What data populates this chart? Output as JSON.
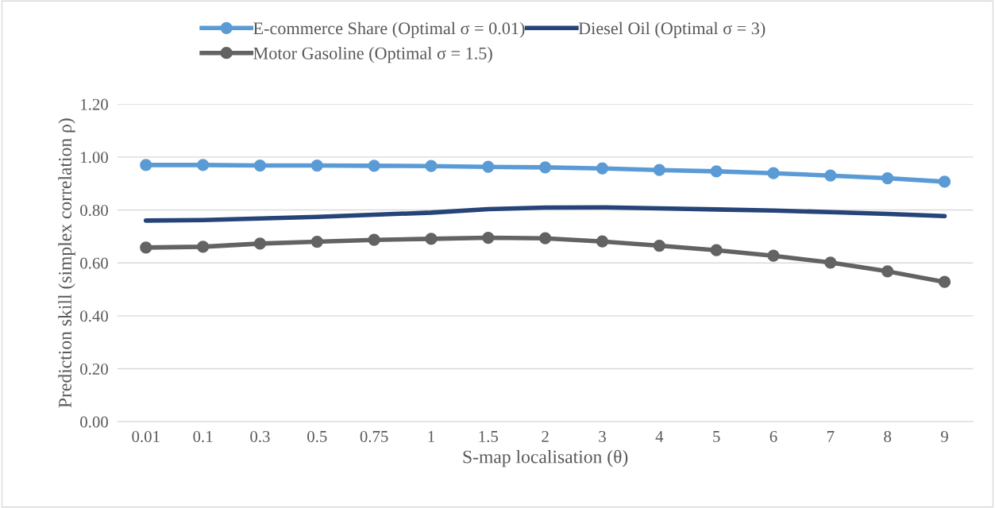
{
  "chart_data": {
    "type": "line",
    "xlabel": "S-map localisation (θ)",
    "ylabel": "Prediction skill (simplex correlation ρ)",
    "categories": [
      "0.01",
      "0.1",
      "0.3",
      "0.5",
      "0.75",
      "1",
      "1.5",
      "2",
      "3",
      "4",
      "5",
      "6",
      "7",
      "8",
      "9"
    ],
    "series": [
      {
        "name": "E-commerce Share (Optimal σ = 0.01)",
        "color": "#5b9bd5",
        "marker": "circle",
        "values": [
          0.97,
          0.97,
          0.968,
          0.968,
          0.967,
          0.966,
          0.963,
          0.961,
          0.957,
          0.951,
          0.946,
          0.939,
          0.93,
          0.92,
          0.907
        ]
      },
      {
        "name": "Motor Gasoline (Optimal σ = 1.5)",
        "color": "#636363",
        "marker": "circle",
        "values": [
          0.658,
          0.661,
          0.673,
          0.68,
          0.687,
          0.691,
          0.695,
          0.693,
          0.681,
          0.665,
          0.648,
          0.627,
          0.601,
          0.568,
          0.528
        ]
      },
      {
        "name": "Diesel Oil (Optimal σ = 3)",
        "color": "#264478",
        "marker": "none",
        "values": [
          0.76,
          0.762,
          0.768,
          0.774,
          0.782,
          0.79,
          0.803,
          0.809,
          0.81,
          0.806,
          0.802,
          0.798,
          0.792,
          0.785,
          0.777
        ]
      }
    ],
    "ylim": [
      0,
      1.2
    ],
    "yticks": [
      {
        "value": 0,
        "label": "0.00"
      },
      {
        "value": 0.2,
        "label": "0.20"
      },
      {
        "value": 0.4,
        "label": "0.40"
      },
      {
        "value": 0.6,
        "label": "0.60"
      },
      {
        "value": 0.8,
        "label": "0.80"
      },
      {
        "value": 1.0,
        "label": "1.00"
      },
      {
        "value": 1.2,
        "label": "1.20"
      }
    ],
    "grid": "y",
    "legend": "top"
  }
}
